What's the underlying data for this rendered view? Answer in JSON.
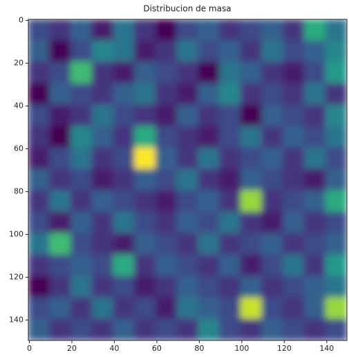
{
  "chart_data": {
    "type": "heatmap",
    "title": "Distribucion de masa",
    "colormap": "viridis",
    "xlim": [
      -0.5,
      149.5
    ],
    "ylim": [
      149.5,
      -0.5
    ],
    "xticks": [
      0,
      20,
      40,
      60,
      80,
      100,
      120,
      140
    ],
    "yticks": [
      0,
      20,
      40,
      60,
      80,
      100,
      120,
      140
    ],
    "z": [
      [
        0.35,
        0.3,
        0.4,
        0.25,
        0.45,
        0.3,
        0.2,
        0.35,
        0.4,
        0.3,
        0.35,
        0.4,
        0.3,
        0.6,
        0.45
      ],
      [
        0.4,
        0.2,
        0.35,
        0.5,
        0.45,
        0.25,
        0.3,
        0.45,
        0.35,
        0.4,
        0.3,
        0.45,
        0.35,
        0.4,
        0.5
      ],
      [
        0.3,
        0.35,
        0.65,
        0.3,
        0.25,
        0.4,
        0.35,
        0.3,
        0.2,
        0.45,
        0.4,
        0.3,
        0.25,
        0.35,
        0.55
      ],
      [
        0.2,
        0.4,
        0.35,
        0.3,
        0.4,
        0.45,
        0.3,
        0.25,
        0.4,
        0.5,
        0.3,
        0.35,
        0.3,
        0.45,
        0.3
      ],
      [
        0.35,
        0.25,
        0.3,
        0.45,
        0.35,
        0.3,
        0.25,
        0.4,
        0.3,
        0.35,
        0.2,
        0.4,
        0.35,
        0.3,
        0.5
      ],
      [
        0.3,
        0.2,
        0.5,
        0.4,
        0.3,
        0.6,
        0.35,
        0.3,
        0.25,
        0.35,
        0.45,
        0.3,
        0.4,
        0.35,
        0.45
      ],
      [
        0.25,
        0.35,
        0.45,
        0.3,
        0.35,
        0.85,
        0.4,
        0.3,
        0.45,
        0.3,
        0.35,
        0.4,
        0.3,
        0.45,
        0.35
      ],
      [
        0.4,
        0.3,
        0.35,
        0.25,
        0.3,
        0.4,
        0.35,
        0.45,
        0.3,
        0.25,
        0.4,
        0.35,
        0.3,
        0.25,
        0.4
      ],
      [
        0.3,
        0.45,
        0.3,
        0.4,
        0.35,
        0.3,
        0.25,
        0.35,
        0.4,
        0.3,
        0.75,
        0.3,
        0.35,
        0.4,
        0.6
      ],
      [
        0.35,
        0.25,
        0.4,
        0.3,
        0.45,
        0.35,
        0.3,
        0.4,
        0.35,
        0.45,
        0.3,
        0.25,
        0.4,
        0.3,
        0.35
      ],
      [
        0.45,
        0.65,
        0.35,
        0.3,
        0.25,
        0.4,
        0.35,
        0.3,
        0.45,
        0.3,
        0.35,
        0.4,
        0.3,
        0.35,
        0.4
      ],
      [
        0.3,
        0.35,
        0.4,
        0.35,
        0.6,
        0.3,
        0.4,
        0.35,
        0.3,
        0.4,
        0.25,
        0.35,
        0.45,
        0.3,
        0.55
      ],
      [
        0.2,
        0.3,
        0.45,
        0.3,
        0.35,
        0.25,
        0.3,
        0.4,
        0.35,
        0.3,
        0.4,
        0.3,
        0.35,
        0.4,
        0.45
      ],
      [
        0.35,
        0.4,
        0.3,
        0.45,
        0.3,
        0.35,
        0.25,
        0.45,
        0.4,
        0.35,
        0.8,
        0.35,
        0.3,
        0.4,
        0.75
      ],
      [
        0.4,
        0.3,
        0.35,
        0.3,
        0.4,
        0.3,
        0.35,
        0.3,
        0.5,
        0.35,
        0.3,
        0.4,
        0.35,
        0.3,
        0.35
      ]
    ]
  }
}
